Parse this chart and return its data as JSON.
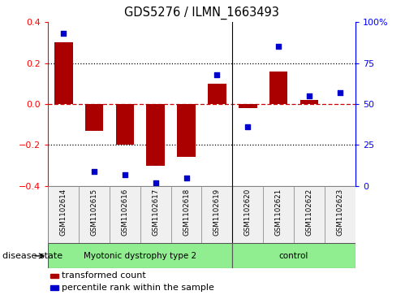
{
  "title": "GDS5276 / ILMN_1663493",
  "samples": [
    "GSM1102614",
    "GSM1102615",
    "GSM1102616",
    "GSM1102617",
    "GSM1102618",
    "GSM1102619",
    "GSM1102620",
    "GSM1102621",
    "GSM1102622",
    "GSM1102623"
  ],
  "transformed_count": [
    0.3,
    -0.13,
    -0.2,
    -0.3,
    -0.26,
    0.1,
    -0.02,
    0.16,
    0.02,
    0.0
  ],
  "percentile_rank": [
    93,
    9,
    7,
    2,
    5,
    68,
    36,
    85,
    55,
    57
  ],
  "n_disease": 6,
  "groups": [
    {
      "label": "Myotonic dystrophy type 2",
      "start": 0,
      "end": 6,
      "color": "#90EE90"
    },
    {
      "label": "control",
      "start": 6,
      "end": 10,
      "color": "#90EE90"
    }
  ],
  "bar_color": "#AA0000",
  "dot_color": "#0000CC",
  "ylim_left": [
    -0.4,
    0.4
  ],
  "ylim_right": [
    0,
    100
  ],
  "yticks_left": [
    -0.4,
    -0.2,
    0.0,
    0.2,
    0.4
  ],
  "yticks_right": [
    0,
    25,
    50,
    75,
    100
  ],
  "ytick_labels_right": [
    "0",
    "25",
    "50",
    "75",
    "100%"
  ],
  "disease_state_label": "disease state",
  "bg_color": "#F0F0F0",
  "legend_items": [
    {
      "color": "#AA0000",
      "label": "transformed count"
    },
    {
      "color": "#0000CC",
      "label": "percentile rank within the sample"
    }
  ]
}
